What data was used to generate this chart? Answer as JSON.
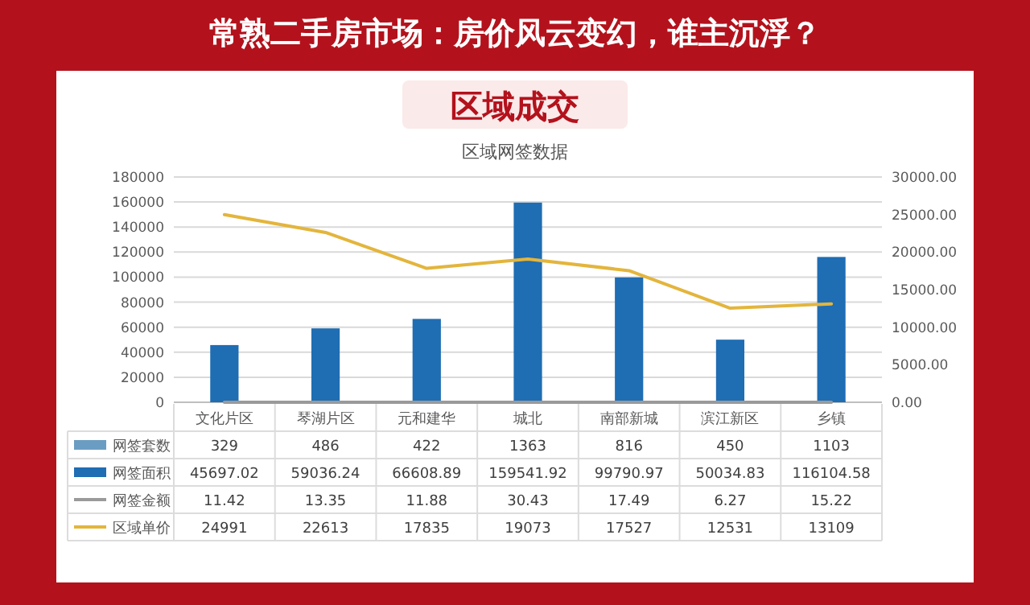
{
  "chart_data": {
    "type": "bar",
    "title": "区域成交",
    "subtitle": "区域网签数据",
    "annotations": [
      "常熟二手房市场：房价风云变幻，谁主沉浮？"
    ],
    "categories": [
      "文化片区",
      "琴湖片区",
      "元和建华",
      "城北",
      "南部新城",
      "滨江新区",
      "乡镇"
    ],
    "series": [
      {
        "name": "网签套数",
        "color": "#6b9dc2",
        "values": [
          329,
          486,
          422,
          1363,
          816,
          450,
          1103
        ]
      },
      {
        "name": "网签面积",
        "color": "#1f6db3",
        "values": [
          45697.02,
          59036.24,
          66608.89,
          159541.92,
          99790.97,
          50034.83,
          116104.58
        ]
      },
      {
        "name": "网签金额",
        "type": "line",
        "color": "#9a9a9a",
        "values": [
          11.42,
          13.35,
          11.88,
          30.43,
          17.49,
          6.27,
          15.22
        ]
      },
      {
        "name": "区域单价",
        "type": "line",
        "axis": "y2",
        "color": "#e3b53c",
        "values": [
          24991,
          22613,
          17835,
          19073,
          17527,
          12531,
          13109
        ]
      }
    ],
    "ylim": [
      0,
      180000
    ],
    "yticks": [
      0,
      20000,
      40000,
      60000,
      80000,
      100000,
      120000,
      140000,
      160000,
      180000
    ],
    "y2lim": [
      0,
      30000
    ],
    "y2ticks": [
      {
        "value": 0,
        "label": "0.00"
      },
      {
        "value": 5000,
        "label": "5000.00"
      },
      {
        "value": 10000,
        "label": "10000.00"
      },
      {
        "value": 15000,
        "label": "15000.00"
      },
      {
        "value": 20000,
        "label": "20000.00"
      },
      {
        "value": 25000,
        "label": "25000.00"
      },
      {
        "value": 30000,
        "label": "30000.00"
      }
    ],
    "grid": "y",
    "legend": "bottom",
    "data_labels": true
  }
}
